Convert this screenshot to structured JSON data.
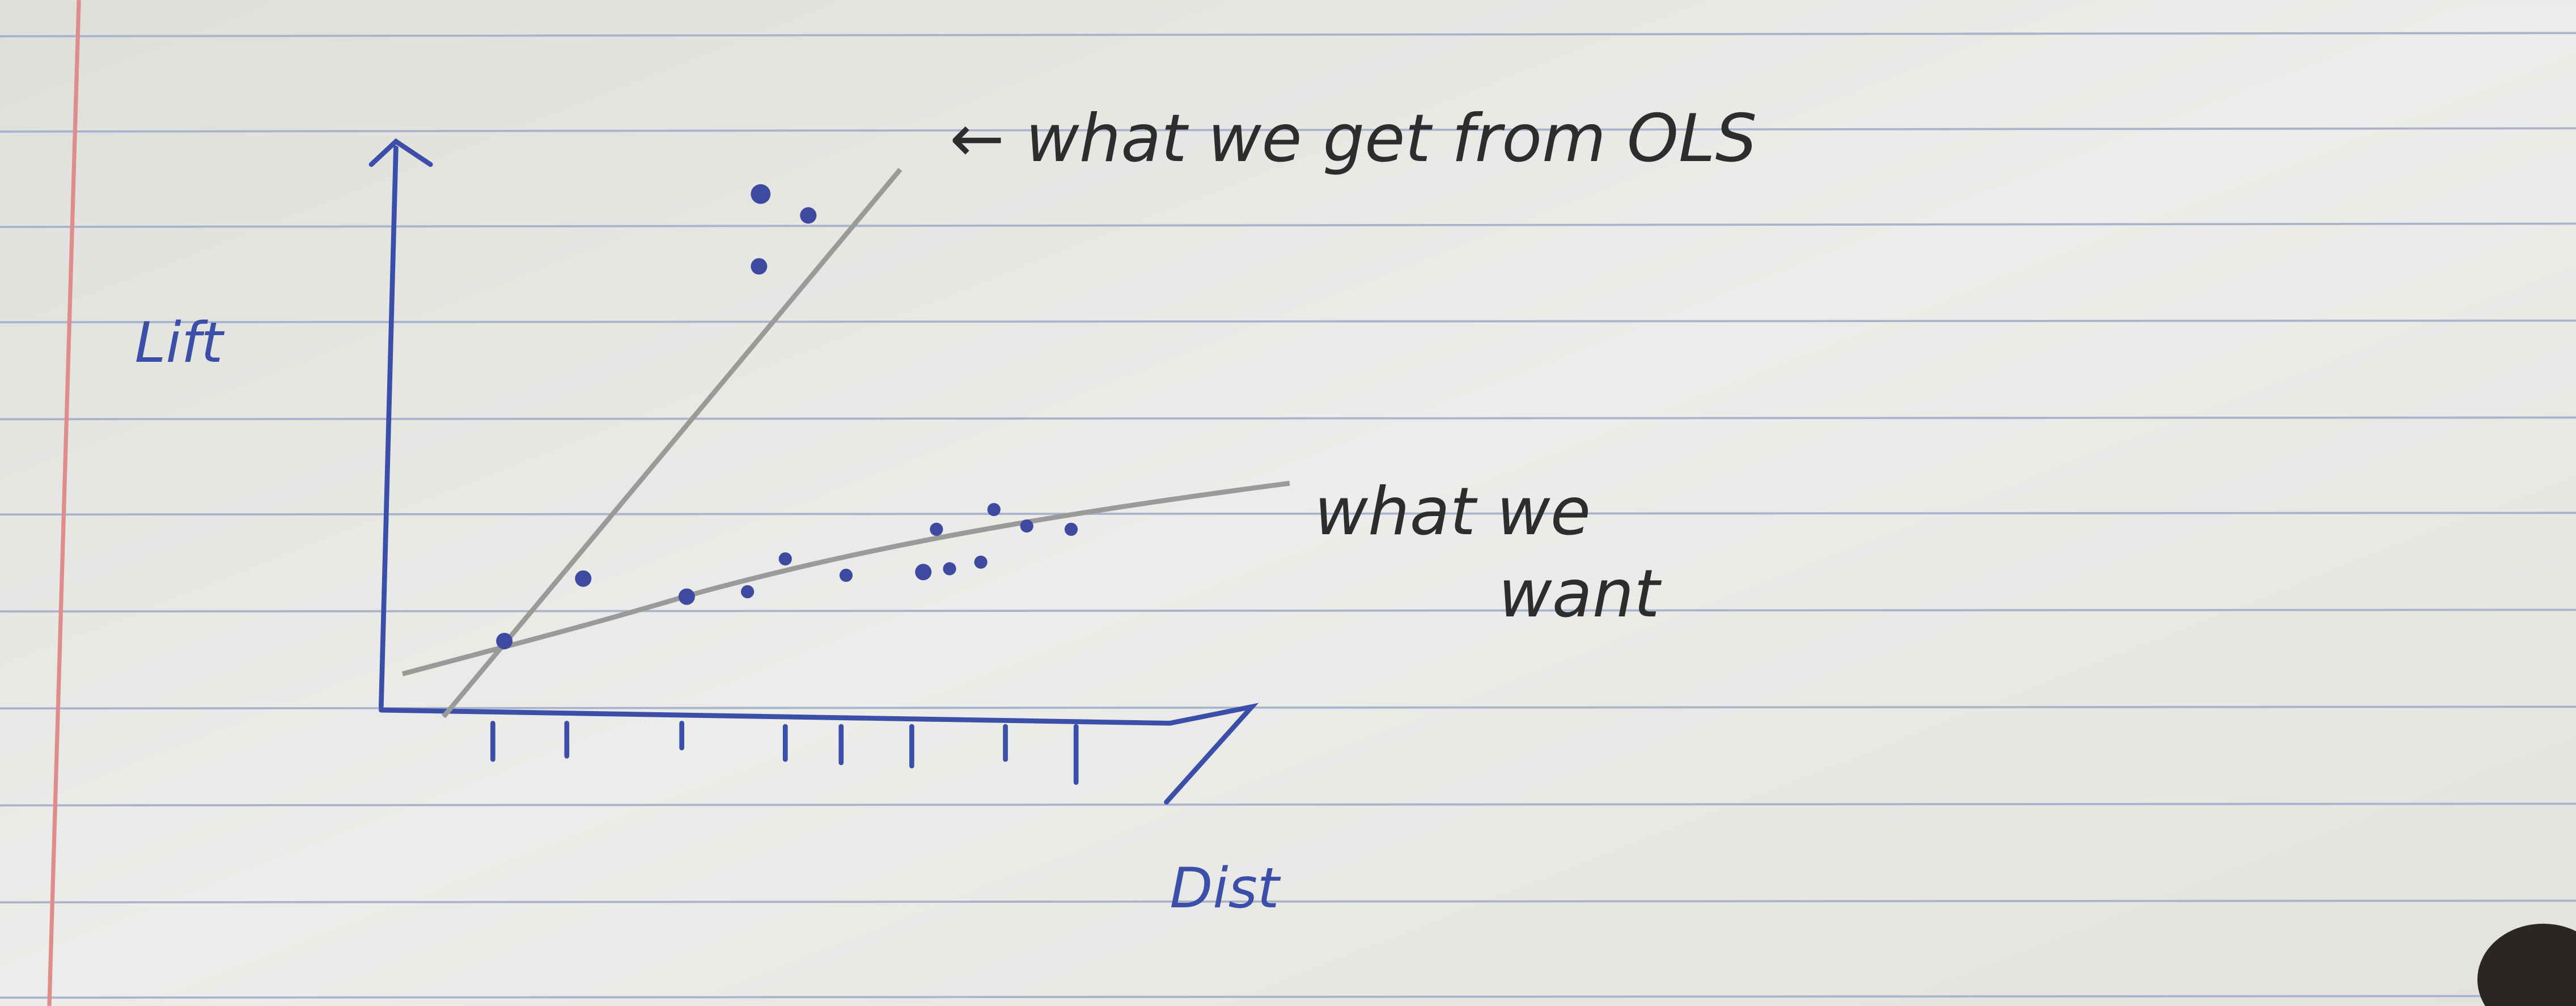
{
  "axes": {
    "y_label": "Lift",
    "x_label": "Dist"
  },
  "annotations": {
    "ols": "← what we get from OLS",
    "want": [
      "what we",
      "want"
    ]
  }
}
